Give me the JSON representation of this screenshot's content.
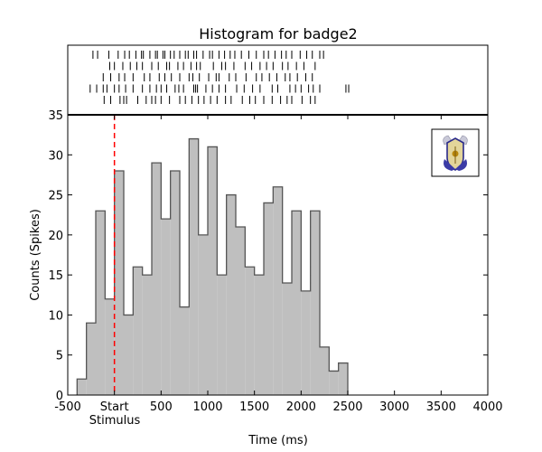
{
  "chart_data": {
    "type": "bar",
    "title": "Histogram for badge2",
    "xlabel": "Time (ms)",
    "ylabel": "Counts (Spikes)",
    "xlim": [
      -500,
      4000
    ],
    "ylim": [
      0,
      35
    ],
    "x_ticks": [
      {
        "value": -500,
        "label": "-500"
      },
      {
        "value": 0,
        "label": "Start"
      },
      {
        "value": 500,
        "label": "500"
      },
      {
        "value": 1000,
        "label": "1000"
      },
      {
        "value": 1500,
        "label": "1500"
      },
      {
        "value": 2000,
        "label": "2000"
      },
      {
        "value": 2500,
        "label": "2500"
      },
      {
        "value": 3000,
        "label": "3000"
      },
      {
        "value": 3500,
        "label": "3500"
      },
      {
        "value": 4000,
        "label": "4000"
      }
    ],
    "y_ticks": [
      0,
      5,
      10,
      15,
      20,
      25,
      30,
      35
    ],
    "stimulus_label": "Stimulus",
    "stimulus_time": 0,
    "bin_width": 100,
    "bin_starts": [
      -400,
      -300,
      -200,
      -100,
      0,
      100,
      200,
      300,
      400,
      500,
      600,
      700,
      800,
      900,
      1000,
      1100,
      1200,
      1300,
      1400,
      1500,
      1600,
      1700,
      1800,
      1900,
      2000,
      2100,
      2200,
      2300,
      2400
    ],
    "values": [
      2,
      9,
      23,
      12,
      28,
      10,
      16,
      15,
      29,
      22,
      28,
      11,
      32,
      20,
      31,
      15,
      25,
      21,
      16,
      15,
      24,
      26,
      14,
      23,
      13,
      23,
      6,
      3,
      4
    ],
    "raster_trials": [
      [
        -230,
        -180,
        -60,
        40,
        110,
        160,
        230,
        290,
        310,
        380,
        440,
        460,
        520,
        540,
        600,
        640,
        700,
        760,
        790,
        850,
        880,
        950,
        1020,
        1050,
        1120,
        1180,
        1240,
        1290,
        1360,
        1440,
        1520,
        1600,
        1650,
        1720,
        1790,
        1840,
        1900,
        1990,
        2060,
        2120,
        2200,
        2240
      ],
      [
        -50,
        0,
        90,
        170,
        240,
        300,
        400,
        470,
        560,
        590,
        680,
        740,
        820,
        880,
        920,
        1060,
        1150,
        1190,
        1280,
        1400,
        1470,
        1560,
        1630,
        1700,
        1800,
        1860,
        1950,
        2030,
        2150
      ],
      [
        -120,
        -40,
        50,
        110,
        200,
        320,
        380,
        480,
        540,
        610,
        700,
        800,
        840,
        910,
        1010,
        1090,
        1120,
        1230,
        1300,
        1410,
        1520,
        1580,
        1660,
        1740,
        1830,
        1880,
        1960,
        2050,
        2120
      ],
      [
        -260,
        -190,
        -120,
        -80,
        0,
        50,
        120,
        200,
        300,
        380,
        450,
        500,
        560,
        650,
        690,
        740,
        850,
        870,
        890,
        980,
        1050,
        1120,
        1190,
        1310,
        1390,
        1480,
        1560,
        1690,
        1750,
        1880,
        1940,
        2000,
        2080,
        2130,
        2200,
        2480,
        2510
      ],
      [
        -110,
        -40,
        60,
        100,
        130,
        250,
        340,
        400,
        440,
        500,
        590,
        700,
        760,
        830,
        900,
        960,
        1030,
        1100,
        1190,
        1250,
        1370,
        1450,
        1510,
        1600,
        1690,
        1780,
        1850,
        1900,
        2010,
        2100,
        2150
      ]
    ]
  },
  "colors": {
    "bar_fill": "#bfbfbf",
    "bar_stroke": "#555555",
    "stimulus_line": "#ff0000",
    "axis": "#000000"
  },
  "inset_icon": "badge-crest-icon"
}
